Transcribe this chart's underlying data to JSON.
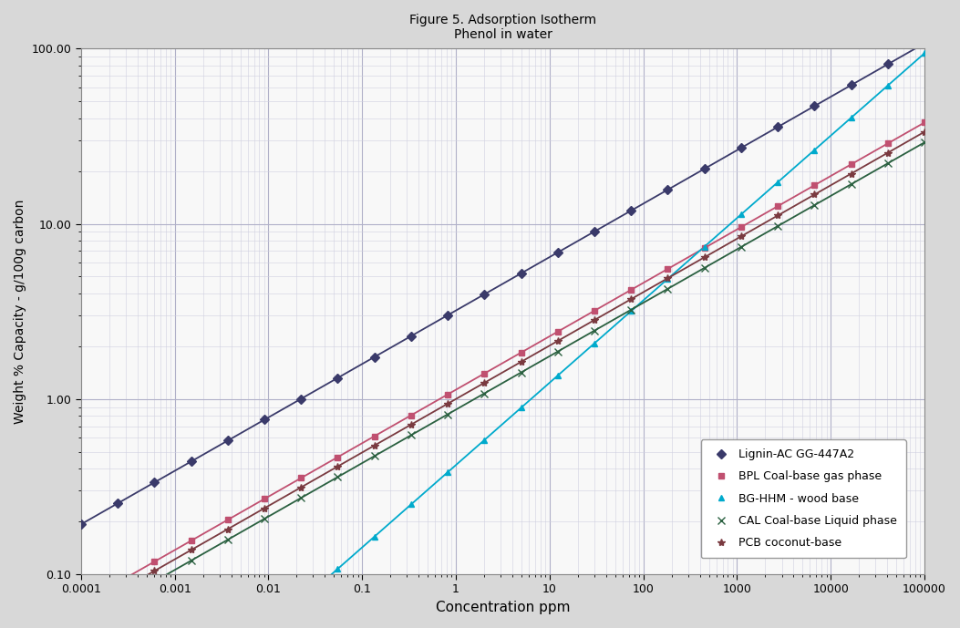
{
  "title_line1": "Figure 5. Adsorption Isotherm",
  "title_line2": "Phenol in water",
  "xlabel": "Concentration ppm",
  "ylabel": "Weight % Capacity - g/100g carbon",
  "xlim": [
    0.0001,
    100000
  ],
  "ylim": [
    0.1,
    100.0
  ],
  "background_color": "#f5f5f5",
  "grid_major_color": "#b0b0c8",
  "grid_minor_color": "#d0d0e0",
  "series": [
    {
      "label": "Lignin-AC GG-447A2",
      "color": "#3a3a6a",
      "marker": "D",
      "markersize": 5,
      "K": 3.2,
      "n": 0.305
    },
    {
      "label": "BPL Coal-base gas phase",
      "color": "#c05070",
      "marker": "s",
      "markersize": 5,
      "K": 1.13,
      "n": 0.305
    },
    {
      "label": "BG-HHM - wood base",
      "color": "#00aacc",
      "marker": "^",
      "markersize": 5,
      "K": 0.42,
      "n": 0.47
    },
    {
      "label": "CAL Coal-base Liquid phase",
      "color": "#2a6040",
      "marker": "x",
      "markersize": 6,
      "K": 0.87,
      "n": 0.305
    },
    {
      "label": "PCB coconut-base",
      "color": "#7a3a40",
      "marker": "*",
      "markersize": 6,
      "K": 1.0,
      "n": 0.305
    }
  ]
}
